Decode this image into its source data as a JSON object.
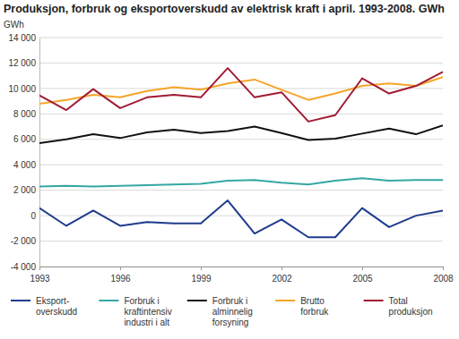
{
  "chart_data": {
    "type": "line",
    "title": "Produksjon, forbruk og eksportoverskudd av elektrisk kraft i april. 1993-2008. GWh",
    "ylabel": "GWh",
    "x": [
      1993,
      1994,
      1995,
      1996,
      1997,
      1998,
      1999,
      2000,
      2001,
      2002,
      2003,
      2004,
      2005,
      2006,
      2007,
      2008
    ],
    "xlim": [
      1993,
      2008
    ],
    "xticks": [
      1993,
      1996,
      1999,
      2002,
      2005,
      2008
    ],
    "ylim": [
      -4000,
      14000
    ],
    "yticks": [
      {
        "value": -4000,
        "label": "-4 000"
      },
      {
        "value": -2000,
        "label": "-2 000"
      },
      0,
      {
        "value": 2000,
        "label": "2 000"
      },
      {
        "value": 4000,
        "label": "4 000"
      },
      {
        "value": 6000,
        "label": "6 000"
      },
      {
        "value": 8000,
        "label": "8 000"
      },
      {
        "value": 10000,
        "label": "10 000"
      },
      {
        "value": 12000,
        "label": "12 000"
      },
      {
        "value": 14000,
        "label": "14 000"
      }
    ],
    "grid": true,
    "legend": "bottom",
    "series": [
      {
        "name": "Eksport-\noverskudd",
        "color": "#1f3b8c",
        "values": [
          600,
          -800,
          400,
          -800,
          -500,
          -600,
          -600,
          1200,
          -1400,
          -300,
          -1700,
          -1700,
          600,
          -900,
          0,
          400
        ]
      },
      {
        "name": "Forbruk i\nkraftintensiv\nindustri i alt",
        "color": "#35a7a2",
        "values": [
          2300,
          2350,
          2300,
          2350,
          2400,
          2450,
          2500,
          2750,
          2800,
          2600,
          2450,
          2750,
          2950,
          2750,
          2800,
          2800
        ]
      },
      {
        "name": "Forbruk i\nalminnelig\nforsyning",
        "color": "#111111",
        "values": [
          5700,
          6000,
          6400,
          6100,
          6550,
          6750,
          6500,
          6650,
          7000,
          6500,
          5950,
          6050,
          6450,
          6850,
          6400,
          7100
        ]
      },
      {
        "name": "Brutto\nforbruk",
        "color": "#f5a52a",
        "values": [
          8800,
          9100,
          9500,
          9300,
          9800,
          10100,
          9900,
          10400,
          10700,
          9900,
          9100,
          9600,
          10200,
          10400,
          10200,
          10900
        ]
      },
      {
        "name": "Total\nproduksjon",
        "color": "#a11a33",
        "values": [
          9450,
          8300,
          9950,
          8450,
          9300,
          9500,
          9300,
          11600,
          9300,
          9700,
          7400,
          7900,
          10800,
          9600,
          10200,
          11300
        ]
      }
    ]
  }
}
